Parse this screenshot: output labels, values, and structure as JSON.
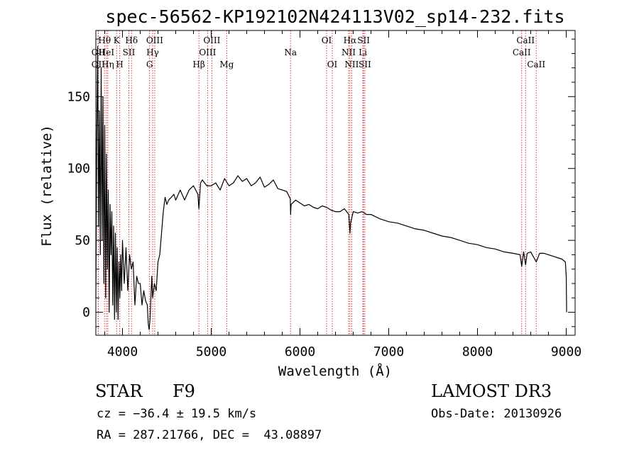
{
  "chart_data": {
    "type": "line",
    "title": "spec-56562-KP192102N424113V02_sp14-232.fits",
    "xlabel": "Wavelength (Å)",
    "ylabel": "Flux (relative)",
    "xlim": [
      3700,
      9100
    ],
    "ylim": [
      -16,
      196
    ],
    "xticks": [
      4000,
      5000,
      6000,
      7000,
      8000,
      9000
    ],
    "yticks": [
      0,
      50,
      100,
      150
    ],
    "spectral_lines": [
      {
        "label": "OII",
        "wavelength": 3727,
        "row": 2
      },
      {
        "label": "OII",
        "wavelength": 3727,
        "row": 3
      },
      {
        "label": "Hθ",
        "wavelength": 3798,
        "row": 1
      },
      {
        "label": "HeI",
        "wavelength": 3820,
        "row": 2
      },
      {
        "label": "Hη",
        "wavelength": 3835,
        "row": 3
      },
      {
        "label": "K",
        "wavelength": 3934,
        "row": 1
      },
      {
        "label": "H",
        "wavelength": 3969,
        "row": 3
      },
      {
        "label": "SII",
        "wavelength": 4072,
        "row": 2
      },
      {
        "label": "Hδ",
        "wavelength": 4102,
        "row": 1
      },
      {
        "label": "G",
        "wavelength": 4305,
        "row": 3
      },
      {
        "label": "Hγ",
        "wavelength": 4340,
        "row": 2
      },
      {
        "label": "OIII",
        "wavelength": 4363,
        "row": 1
      },
      {
        "label": "Hβ",
        "wavelength": 4861,
        "row": 3
      },
      {
        "label": "OIII",
        "wavelength": 4959,
        "row": 2
      },
      {
        "label": "OIII",
        "wavelength": 5007,
        "row": 1
      },
      {
        "label": "Mg",
        "wavelength": 5175,
        "row": 3
      },
      {
        "label": "Na",
        "wavelength": 5894,
        "row": 2
      },
      {
        "label": "OI",
        "wavelength": 6300,
        "row": 1
      },
      {
        "label": "OI",
        "wavelength": 6364,
        "row": 3
      },
      {
        "label": "NII",
        "wavelength": 6548,
        "row": 2
      },
      {
        "label": "Hα",
        "wavelength": 6563,
        "row": 1
      },
      {
        "label": "NII",
        "wavelength": 6583,
        "row": 3
      },
      {
        "label": "SII",
        "wavelength": 6717,
        "row": 1
      },
      {
        "label": "Li",
        "wavelength": 6708,
        "row": 2
      },
      {
        "label": "SII",
        "wavelength": 6731,
        "row": 3
      },
      {
        "label": "CaII",
        "wavelength": 8498,
        "row": 2
      },
      {
        "label": "CaII",
        "wavelength": 8542,
        "row": 1
      },
      {
        "label": "CaII",
        "wavelength": 8662,
        "row": 3
      }
    ],
    "series": [
      {
        "name": "flux",
        "x": [
          3700,
          3710,
          3720,
          3730,
          3740,
          3750,
          3760,
          3770,
          3780,
          3790,
          3800,
          3810,
          3820,
          3830,
          3840,
          3850,
          3860,
          3870,
          3880,
          3890,
          3900,
          3910,
          3920,
          3930,
          3940,
          3950,
          3960,
          3970,
          3980,
          3990,
          4000,
          4020,
          4040,
          4060,
          4080,
          4100,
          4120,
          4140,
          4160,
          4180,
          4200,
          4220,
          4240,
          4260,
          4280,
          4290,
          4300,
          4310,
          4320,
          4330,
          4340,
          4360,
          4380,
          4400,
          4420,
          4440,
          4460,
          4480,
          4500,
          4520,
          4550,
          4580,
          4600,
          4650,
          4700,
          4750,
          4800,
          4850,
          4861,
          4880,
          4900,
          4950,
          5000,
          5050,
          5100,
          5150,
          5200,
          5250,
          5300,
          5350,
          5400,
          5450,
          5500,
          5550,
          5600,
          5650,
          5700,
          5750,
          5800,
          5850,
          5890,
          5894,
          5900,
          5950,
          6000,
          6050,
          6100,
          6150,
          6200,
          6250,
          6300,
          6350,
          6400,
          6450,
          6500,
          6550,
          6563,
          6570,
          6600,
          6650,
          6700,
          6750,
          6800,
          6900,
          7000,
          7100,
          7200,
          7300,
          7400,
          7500,
          7600,
          7700,
          7800,
          7900,
          8000,
          8100,
          8200,
          8300,
          8400,
          8480,
          8498,
          8520,
          8542,
          8560,
          8600,
          8662,
          8700,
          8750,
          8800,
          8850,
          8900,
          8950,
          8990,
          9000,
          9005
        ],
        "values": [
          10,
          120,
          185,
          60,
          140,
          40,
          170,
          50,
          150,
          20,
          130,
          10,
          110,
          30,
          85,
          0,
          75,
          40,
          70,
          5,
          60,
          -5,
          55,
          0,
          45,
          -5,
          35,
          10,
          40,
          15,
          50,
          20,
          45,
          15,
          40,
          30,
          35,
          5,
          25,
          20,
          20,
          5,
          15,
          8,
          5,
          -8,
          -12,
          -5,
          10,
          25,
          10,
          20,
          15,
          35,
          40,
          55,
          70,
          80,
          75,
          78,
          80,
          82,
          78,
          85,
          78,
          85,
          88,
          82,
          72,
          90,
          92,
          88,
          88,
          90,
          85,
          93,
          88,
          90,
          95,
          91,
          93,
          88,
          90,
          94,
          87,
          89,
          92,
          86,
          85,
          84,
          79,
          68,
          75,
          78,
          76,
          74,
          75,
          73,
          72,
          74,
          73,
          71,
          70,
          70,
          72,
          68,
          55,
          62,
          70,
          69,
          70,
          68,
          68,
          65,
          63,
          62,
          60,
          58,
          57,
          55,
          53,
          52,
          50,
          48,
          47,
          45,
          44,
          42,
          41,
          40,
          32,
          42,
          33,
          41,
          42,
          35,
          41,
          41,
          40,
          39,
          38,
          37,
          35,
          25,
          0
        ]
      }
    ]
  },
  "info": {
    "object_class": "STAR",
    "subclass": "F9",
    "survey": "LAMOST DR3",
    "redshift": "cz = −36.4 ± 19.5 km/s",
    "obs_date": "Obs-Date: 20130926",
    "coords": "RA = 287.21766, DEC =  43.08897"
  }
}
